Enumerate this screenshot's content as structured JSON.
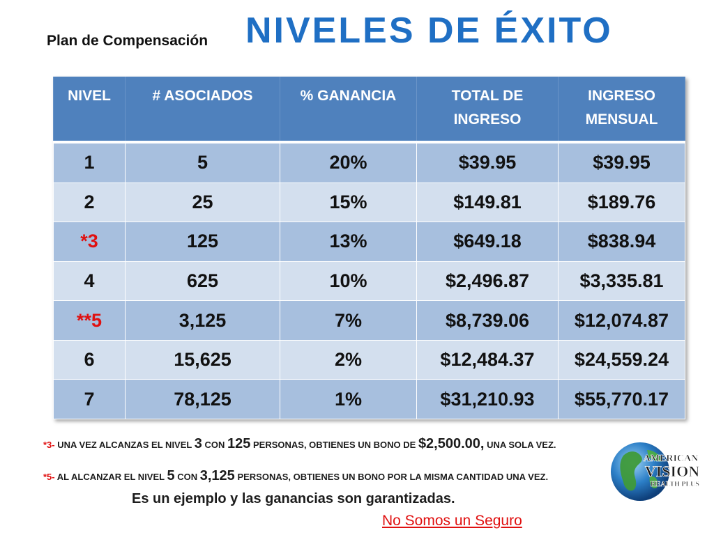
{
  "header": {
    "subtitle": "Plan de Compensación",
    "title": "NIVELES DE ÉXITO"
  },
  "table": {
    "columns": [
      "NIVEL",
      "# ASOCIADOS",
      "% GANANCIA",
      "TOTAL DE INGRESO",
      "INGRESO MENSUAL"
    ],
    "rows": [
      {
        "nivel": "1",
        "asociados": "5",
        "ganancia": "20%",
        "total": "$39.95",
        "mensual": "$39.95"
      },
      {
        "nivel": "2",
        "asociados": "25",
        "ganancia": "15%",
        "total": "$149.81",
        "mensual": "$189.76"
      },
      {
        "nivel": "*3",
        "asociados": "125",
        "ganancia": "13%",
        "total": "$649.18",
        "mensual": "$838.94"
      },
      {
        "nivel": "4",
        "asociados": "625",
        "ganancia": "10%",
        "total": "$2,496.87",
        "mensual": "$3,335.81"
      },
      {
        "nivel": "**5",
        "asociados": "3,125",
        "ganancia": "7%",
        "total": "$8,739.06",
        "mensual": "$12,074.87"
      },
      {
        "nivel": "6",
        "asociados": "15,625",
        "ganancia": "2%",
        "total": "$12,484.37",
        "mensual": "$24,559.24"
      },
      {
        "nivel": "7",
        "asociados": "78,125",
        "ganancia": "1%",
        "total": "$31,210.93",
        "mensual": "$55,770.17"
      }
    ]
  },
  "notes": {
    "note1": {
      "mark": "*3-",
      "p1": "UNA VEZ ALCANZAS EL NIVEL",
      "v1": "3",
      "p2": "CON",
      "v2": "125",
      "p3": "PERSONAS, OBTIENES UN BONO DE",
      "v3": "$2,500.00,",
      "p4": "UNA SOLA VEZ."
    },
    "note2": {
      "mark": "*5-",
      "p1": "AL ALCANZAR EL NIVEL",
      "v1": "5",
      "p2": "CON",
      "v2": "3,125",
      "p3": "PERSONAS,  OBTIENES UN BONO POR LA MISMA CANTIDAD UNA VEZ."
    },
    "example": "Es un ejemplo y las ganancias son garantizadas.",
    "disclaimer": "No Somos un Seguro"
  },
  "logo": {
    "line1": "AMERICAN",
    "line2": "VISION",
    "line3": "HEALTH PLUS",
    "icon": "globe-icon"
  },
  "colors": {
    "title": "#1f6fc4",
    "header_bg": "#4f81bd",
    "row_dark": "#a7bfde",
    "row_light": "#d3dfee",
    "accent_red": "#e01010"
  }
}
